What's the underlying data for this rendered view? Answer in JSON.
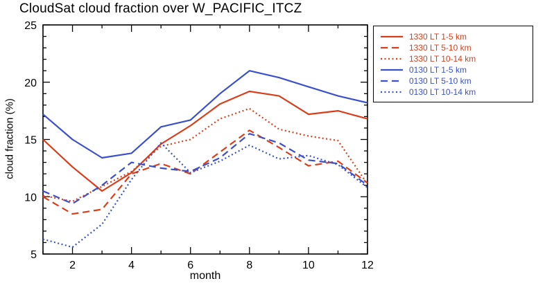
{
  "figure": {
    "title": "CloudSat cloud fraction over W_PACIFIC_ITCZ"
  },
  "colors": {
    "red": "#d93d1a",
    "blue": "#3a50cb",
    "axis": "#000000",
    "background": "#ffffff"
  },
  "chart_data": {
    "type": "line",
    "title": "CloudSat cloud fraction over W_PACIFIC_ITCZ",
    "xlabel": "month",
    "ylabel": "cloud fraction (%)",
    "xlim": [
      1,
      12
    ],
    "ylim": [
      5,
      25
    ],
    "xticks": [
      2,
      4,
      6,
      8,
      10,
      12
    ],
    "yticks": [
      5,
      10,
      15,
      20,
      25
    ],
    "grid": false,
    "legend_position": "outside-top-right",
    "x": [
      1,
      2,
      3,
      4,
      5,
      6,
      7,
      8,
      9,
      10,
      11,
      12
    ],
    "series": [
      {
        "name": "1330 LT 1-5 km",
        "color": "#d93d1a",
        "style": "solid",
        "values": [
          15.0,
          12.6,
          10.5,
          12.1,
          14.6,
          16.2,
          18.1,
          19.2,
          18.8,
          17.2,
          17.5,
          16.8
        ]
      },
      {
        "name": "1330 LT 5-10 km",
        "color": "#d93d1a",
        "style": "dashed",
        "values": [
          10.0,
          8.5,
          8.9,
          12.0,
          12.9,
          12.0,
          13.9,
          15.8,
          14.3,
          12.7,
          13.1,
          11.2
        ]
      },
      {
        "name": "1330 LT 10-14 km",
        "color": "#d93d1a",
        "style": "dotted",
        "values": [
          10.1,
          9.6,
          10.9,
          12.2,
          14.4,
          15.0,
          16.8,
          17.7,
          15.9,
          15.3,
          14.9,
          11.1
        ]
      },
      {
        "name": "0130 LT 1-5 km",
        "color": "#3a50cb",
        "style": "solid",
        "values": [
          17.2,
          15.0,
          13.4,
          13.8,
          16.1,
          16.7,
          19.0,
          21.0,
          20.4,
          19.6,
          18.8,
          18.2
        ]
      },
      {
        "name": "0130 LT 5-10 km",
        "color": "#3a50cb",
        "style": "dashed",
        "values": [
          10.5,
          9.4,
          11.0,
          13.0,
          12.5,
          12.2,
          13.4,
          15.5,
          14.7,
          13.2,
          12.9,
          11.0
        ]
      },
      {
        "name": "0130 LT 10-14 km",
        "color": "#3a50cb",
        "style": "dotted",
        "values": [
          6.3,
          5.6,
          7.6,
          11.5,
          14.7,
          12.1,
          13.1,
          14.5,
          13.3,
          13.6,
          12.8,
          10.8
        ]
      }
    ]
  }
}
